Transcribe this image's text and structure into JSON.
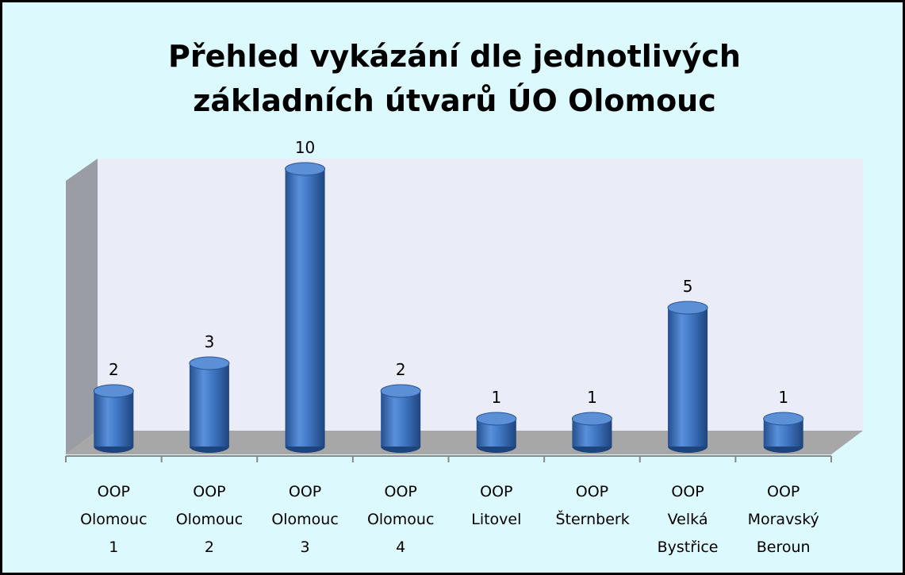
{
  "chart_data": {
    "type": "bar",
    "title": "Přehled vykázání dle jednotlivých základních útvarů ÚO Olomouc",
    "categories": [
      "OOP Olomouc 1",
      "OOP Olomouc 2",
      "OOP Olomouc 3",
      "OOP Olomouc 4",
      "OOP Litovel",
      "OOP Šternberk",
      "OOP Velká Bystřice",
      "OOP Moravský Beroun"
    ],
    "values": [
      2,
      3,
      10,
      2,
      1,
      1,
      5,
      1
    ],
    "color": "#3f76c2"
  }
}
